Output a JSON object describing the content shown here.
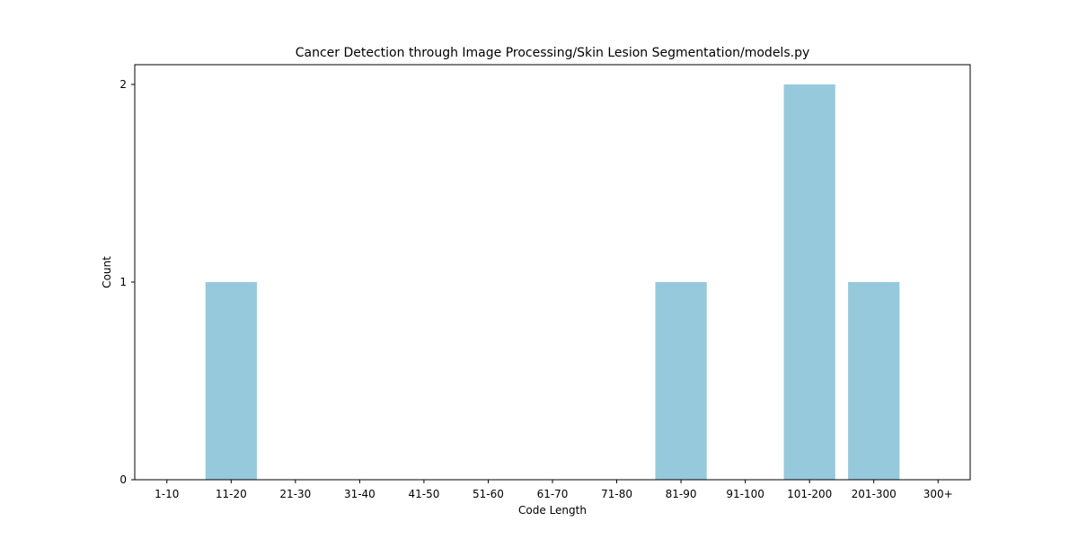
{
  "chart_data": {
    "type": "bar",
    "title": "Cancer Detection through Image Processing/Skin Lesion Segmentation/models.py",
    "xlabel": "Code Length",
    "ylabel": "Count",
    "categories": [
      "1-10",
      "11-20",
      "21-30",
      "31-40",
      "41-50",
      "51-60",
      "61-70",
      "71-80",
      "81-90",
      "91-100",
      "101-200",
      "201-300",
      "300+"
    ],
    "values": [
      0,
      1,
      0,
      0,
      0,
      0,
      0,
      0,
      1,
      0,
      2,
      1,
      0
    ],
    "yticks": [
      0,
      1,
      2
    ],
    "ylim": [
      0,
      2.1
    ],
    "grid": false,
    "bar_color": "#96c9dc"
  }
}
